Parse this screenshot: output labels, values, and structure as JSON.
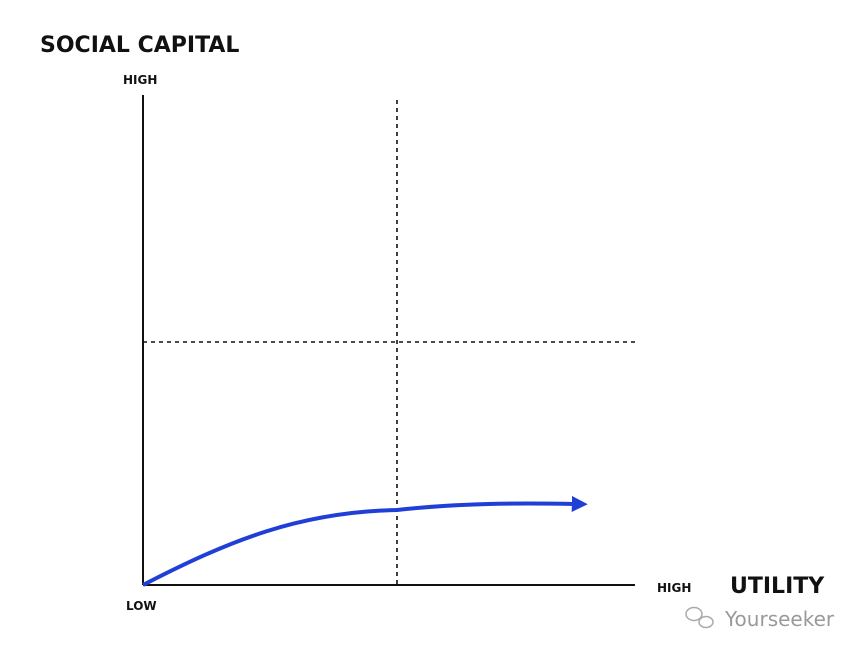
{
  "title": "SOCIAL CAPITAL",
  "y_axis": {
    "high_label": "HIGH"
  },
  "x_axis": {
    "high_label": "HIGH",
    "label": "UTILITY"
  },
  "origin_label": "LOW",
  "watermark": "Yourseeker"
}
